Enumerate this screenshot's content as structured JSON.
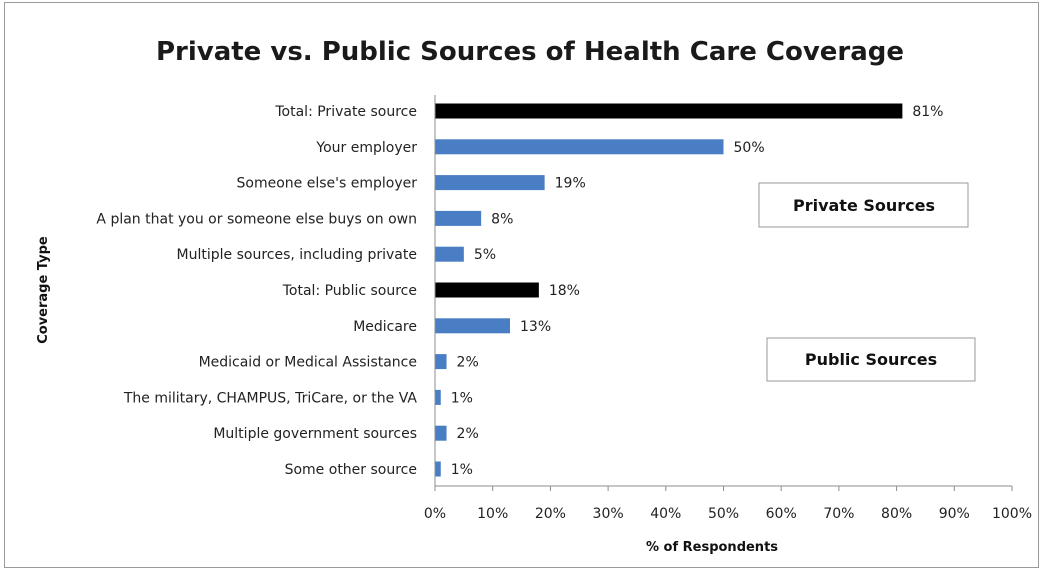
{
  "chart_data": {
    "type": "bar",
    "orientation": "horizontal",
    "title": "Private vs. Public Sources of Health Care Coverage",
    "xlabel": "% of Respondents",
    "ylabel": "Coverage Type",
    "xlim": [
      0,
      100
    ],
    "x_ticks": [
      "0%",
      "10%",
      "20%",
      "30%",
      "40%",
      "50%",
      "60%",
      "70%",
      "80%",
      "90%",
      "100%"
    ],
    "categories": [
      "Total: Private source",
      "Your employer",
      "Someone else's employer",
      "A plan that you or someone else buys on own",
      "Multiple sources, including private",
      "Total: Public source",
      "Medicare",
      "Medicaid or Medical Assistance",
      "The military, CHAMPUS, TriCare, or the VA",
      "Multiple government sources",
      "Some other source"
    ],
    "values": [
      81,
      50,
      19,
      8,
      5,
      18,
      13,
      2,
      1,
      2,
      1
    ],
    "data_labels": [
      "81%",
      "50%",
      "19%",
      "8%",
      "5%",
      "18%",
      "13%",
      "2%",
      "1%",
      "2%",
      "1%"
    ],
    "bar_colors": [
      "#000000",
      "#4a7ec4",
      "#4a7ec4",
      "#4a7ec4",
      "#4a7ec4",
      "#000000",
      "#4a7ec4",
      "#4a7ec4",
      "#4a7ec4",
      "#4a7ec4",
      "#4a7ec4"
    ],
    "annotations": [
      "Private Sources",
      "Public Sources"
    ],
    "grid": false,
    "legend": "none"
  }
}
